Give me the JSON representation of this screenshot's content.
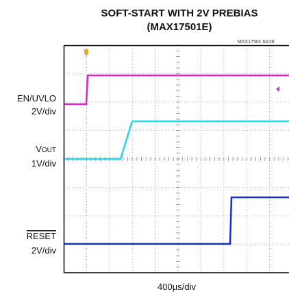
{
  "header": {
    "title_line1": "SOFT-START WITH 2V PREBIAS",
    "title_line2": "(MAX17501E)",
    "code": "MAX17501 toc28"
  },
  "channels": [
    {
      "name": "EN/UVLO",
      "scale": "2V/div"
    },
    {
      "name": "V",
      "name_sub": "OUT",
      "scale": "1V/div"
    },
    {
      "name": "RESET",
      "scale": "2V/div"
    }
  ],
  "timebase": "400µs/div"
}
